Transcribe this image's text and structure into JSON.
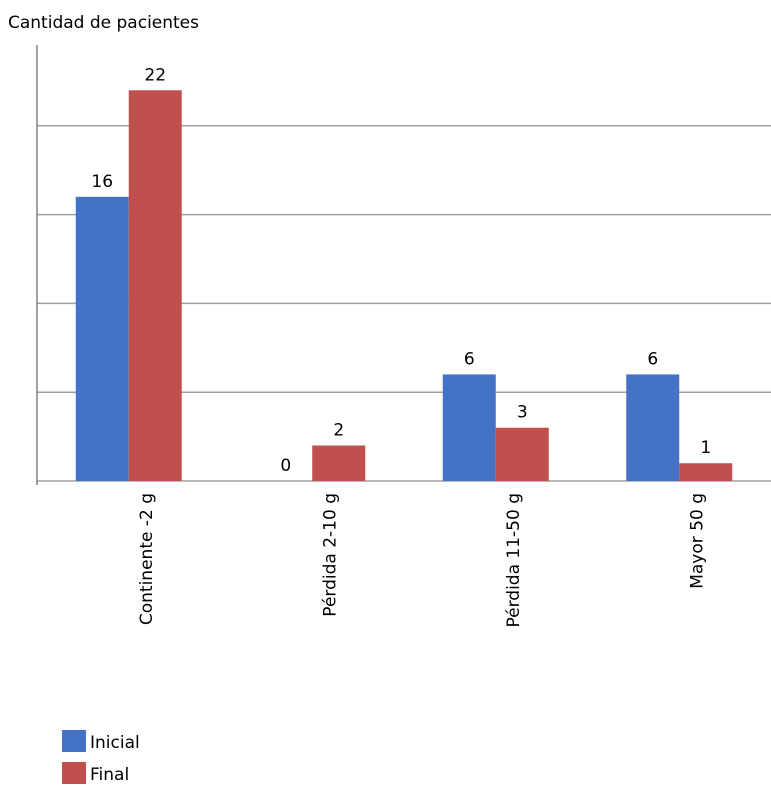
{
  "chart_data": {
    "type": "bar",
    "title": "Cantidad de pacientes",
    "categories": [
      "Continente -2 g",
      "Pérdida 2-10 g",
      "Pérdida 11-50 g",
      "Mayor 50 g"
    ],
    "series": [
      {
        "name": "Inicial",
        "color": "#4472c4",
        "values": [
          16,
          0,
          6,
          6
        ]
      },
      {
        "name": "Final",
        "color": "#c0504d",
        "values": [
          22,
          2,
          3,
          1
        ]
      }
    ],
    "ylim": [
      0,
      25
    ],
    "yticks": [
      0,
      5,
      10,
      15,
      20
    ],
    "grid": true,
    "legend": "bottom-left"
  }
}
